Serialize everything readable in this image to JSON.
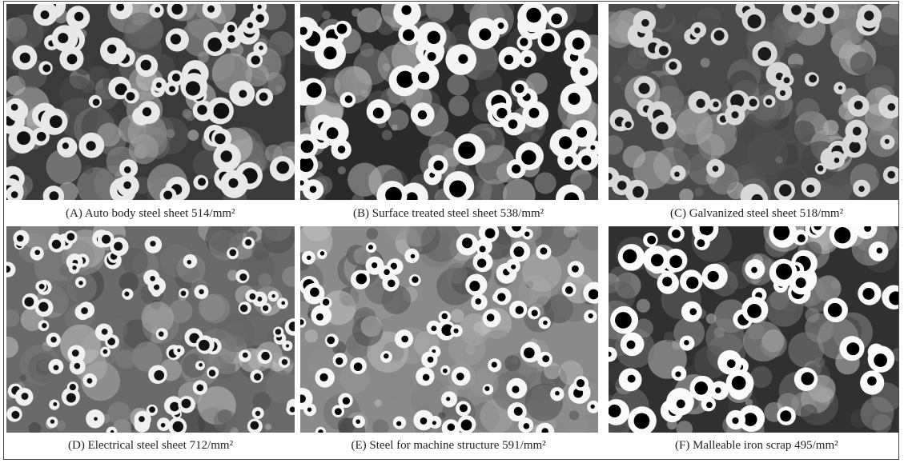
{
  "figure": {
    "panels": [
      {
        "caption": "(A) Auto body steel sheet 514/mm²"
      },
      {
        "caption": "(B) Surface treated steel sheet 538/mm²"
      },
      {
        "caption": "(C) Galvanized steel sheet 518/mm²"
      },
      {
        "caption": "(D) Electrical steel sheet 712/mm²"
      },
      {
        "caption": "(E) Steel for machine structure 591/mm²"
      },
      {
        "caption": "(F) Malleable iron scrap 495/mm²"
      }
    ]
  }
}
